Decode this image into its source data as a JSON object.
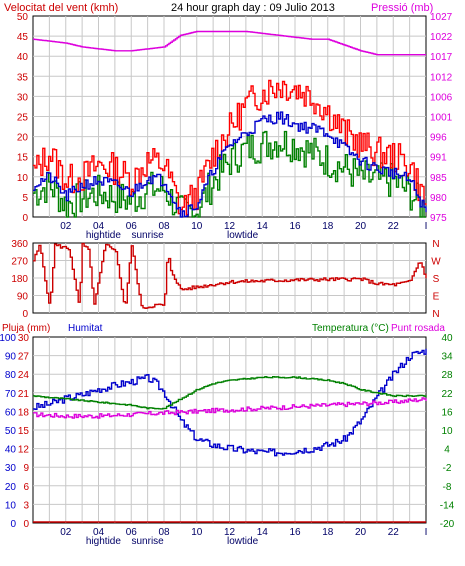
{
  "header": {
    "wind_speed_label": "Velocitat del vent (kmh)",
    "title": "24 hour graph day : 09 Julio 2013",
    "pressure_label": "Pressió (mb)"
  },
  "bottom_header": {
    "rain_label": "Pluja (mm)",
    "humidity_label": "Humitat",
    "temp_label": "Temperatura (°C)",
    "dew_label": "Punt rosada"
  },
  "colors": {
    "wind_gust": "#ff0000",
    "wind_avg": "#008000",
    "wind_speed2": "#0000cc",
    "pressure": "#dd00dd",
    "direction": "#cc0000",
    "humidity": "#0000cc",
    "temperature": "#008000",
    "dewpoint": "#dd00dd",
    "rain": "#cc0000",
    "grid": "#c8c8c8"
  },
  "chart_data": [
    {
      "type": "line",
      "name": "wind-pressure",
      "x_ticks": [
        "02",
        "04",
        "06",
        "08",
        "10",
        "12",
        "14",
        "16",
        "18",
        "20",
        "22",
        "I"
      ],
      "x_annotations": [
        "hightide",
        "sunrise",
        "lowtide"
      ],
      "y_left": {
        "ticks": [
          0,
          5,
          10,
          15,
          20,
          25,
          30,
          35,
          40,
          45,
          50
        ],
        "range": [
          0,
          50
        ],
        "label": "Velocitat del vent (kmh)"
      },
      "y_right": {
        "ticks": [
          975,
          980,
          985,
          991,
          996,
          1001,
          1006,
          1012,
          1017,
          1022,
          1027
        ],
        "range": [
          975,
          1027
        ],
        "label": "Pressió (mb)"
      },
      "series": [
        {
          "color": "#ff0000",
          "hours": [
            0,
            1,
            2,
            3,
            4,
            5,
            6,
            7,
            8,
            9,
            10,
            11,
            12,
            13,
            14,
            15,
            16,
            17,
            18,
            19,
            20,
            21,
            22,
            23,
            24
          ],
          "values": [
            11,
            16,
            9,
            10,
            13,
            12,
            9,
            14,
            13,
            2,
            6,
            16,
            22,
            28,
            31,
            33,
            32,
            30,
            26,
            21,
            18,
            16,
            15,
            13,
            3
          ]
        },
        {
          "color": "#0000cc",
          "hours": [
            0,
            1,
            2,
            3,
            4,
            5,
            6,
            7,
            8,
            9,
            10,
            11,
            12,
            13,
            14,
            15,
            16,
            17,
            18,
            19,
            20,
            21,
            22,
            23,
            24
          ],
          "values": [
            8,
            10,
            5,
            8,
            9,
            8,
            6,
            10,
            9,
            1,
            3,
            12,
            18,
            21,
            24,
            25,
            23,
            22,
            21,
            17,
            14,
            12,
            11,
            9,
            1
          ]
        },
        {
          "color": "#008000",
          "hours": [
            0,
            1,
            2,
            3,
            4,
            5,
            6,
            7,
            8,
            9,
            10,
            11,
            12,
            13,
            14,
            15,
            16,
            17,
            18,
            19,
            20,
            21,
            22,
            23,
            24
          ],
          "values": [
            6,
            8,
            3,
            5,
            6,
            5,
            4,
            7,
            7,
            1,
            2,
            9,
            14,
            17,
            18,
            19,
            18,
            16,
            14,
            12,
            10,
            9,
            9,
            6,
            1
          ]
        },
        {
          "color": "#dd00dd",
          "hours": [
            0,
            2,
            3,
            5,
            6,
            8,
            9,
            10,
            12,
            13,
            15,
            17,
            18,
            20,
            21,
            24
          ],
          "values": [
            1021,
            1020,
            1019,
            1018,
            1018,
            1019,
            1022,
            1023,
            1023,
            1023,
            1022,
            1021,
            1021,
            1018,
            1017,
            1017
          ]
        }
      ]
    },
    {
      "type": "line",
      "name": "wind-direction",
      "y_left": {
        "ticks": [
          0,
          90,
          180,
          270,
          360
        ],
        "range": [
          0,
          360
        ]
      },
      "y_right": {
        "ticks": [
          "N",
          "E",
          "S",
          "W",
          "N"
        ]
      },
      "series": [
        {
          "color": "#cc0000",
          "hours": [
            0,
            0.4,
            1,
            1.3,
            2.2,
            2.8,
            3,
            3.4,
            3.7,
            4.4,
            5,
            5.6,
            6,
            6.6,
            7,
            7.4,
            8,
            8.2,
            8.4,
            9,
            12,
            16,
            20,
            21,
            22,
            23,
            23.6,
            24
          ],
          "values": [
            270,
            350,
            20,
            350,
            330,
            30,
            350,
            320,
            30,
            350,
            330,
            20,
            350,
            30,
            30,
            40,
            40,
            310,
            220,
            120,
            160,
            170,
            175,
            150,
            145,
            160,
            270,
            180
          ]
        }
      ]
    },
    {
      "type": "line",
      "name": "humidity-temperature",
      "y_left": {
        "ticks": [
          0,
          10,
          20,
          30,
          40,
          50,
          60,
          70,
          80,
          90,
          100
        ],
        "label": "Humitat",
        "range": [
          0,
          100
        ]
      },
      "y_left_rain": {
        "ticks": [
          0,
          3,
          6,
          9,
          12,
          15,
          18,
          21,
          24,
          27,
          30
        ],
        "label": "Pluja (mm)",
        "range": [
          0,
          30
        ]
      },
      "y_right": {
        "ticks": [
          -20,
          -14,
          -8,
          -2,
          4,
          10,
          16,
          22,
          28,
          34,
          40
        ],
        "label": "Temperatura (°C)",
        "range": [
          -20,
          40
        ]
      },
      "series": [
        {
          "color": "#0000cc",
          "hours": [
            0,
            1,
            2,
            3,
            4,
            5,
            6,
            7,
            7.5,
            8,
            9,
            10,
            11,
            12,
            13,
            14,
            15,
            16,
            17,
            18,
            19,
            20,
            21,
            22,
            23,
            24
          ],
          "values": [
            62,
            64,
            67,
            69,
            72,
            74,
            76,
            78,
            75,
            70,
            55,
            45,
            42,
            40,
            39,
            38,
            38,
            39,
            40,
            42,
            45,
            55,
            68,
            80,
            90,
            93
          ]
        },
        {
          "color": "#008000",
          "hours": [
            0,
            2,
            4,
            6,
            7,
            8,
            9,
            10,
            11,
            12,
            14,
            16,
            18,
            19,
            20,
            21,
            22,
            24
          ],
          "values": [
            21,
            20,
            19,
            18,
            17,
            17,
            20,
            23,
            25,
            26,
            27,
            27,
            26,
            25,
            23,
            22,
            21,
            21
          ]
        },
        {
          "color": "#dd00dd",
          "hours": [
            0,
            2,
            4,
            6,
            8,
            10,
            12,
            14,
            16,
            18,
            20,
            22,
            24
          ],
          "values": [
            15,
            14.5,
            14.5,
            15,
            15.5,
            16,
            16.5,
            17,
            17.5,
            18,
            18.5,
            19,
            20
          ]
        },
        {
          "color": "#cc0000",
          "hours": [
            0,
            24
          ],
          "values": [
            0,
            0
          ]
        }
      ]
    }
  ]
}
